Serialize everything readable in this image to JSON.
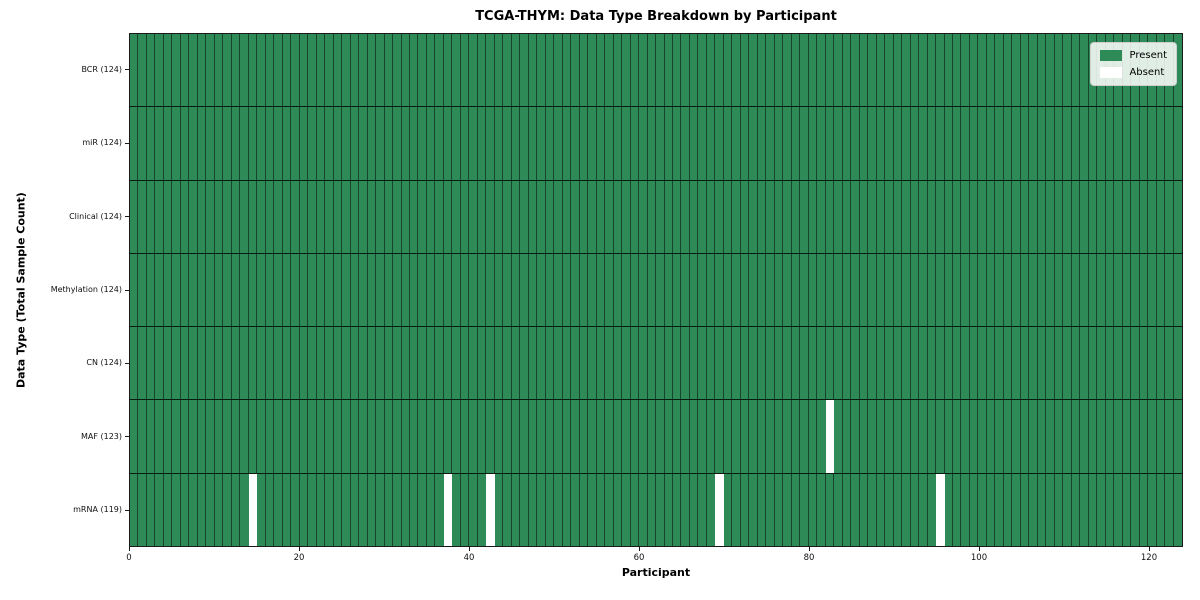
{
  "chart_data": {
    "type": "heatmap",
    "title": "TCGA-THYM: Data Type Breakdown by Participant",
    "xlabel": "Participant",
    "ylabel": "Data Type (Total Sample Count)",
    "x_range": [
      0,
      124
    ],
    "x_ticks": [
      0,
      20,
      40,
      60,
      80,
      100,
      120
    ],
    "n_participants": 124,
    "grid": "per-cell borders, dark row separators",
    "rows": [
      {
        "label": "BCR (124)",
        "data_type": "BCR",
        "total": 124,
        "absent_participants": []
      },
      {
        "label": "miR (124)",
        "data_type": "miR",
        "total": 124,
        "absent_participants": []
      },
      {
        "label": "Clinical (124)",
        "data_type": "Clinical",
        "total": 124,
        "absent_participants": []
      },
      {
        "label": "Methylation (124)",
        "data_type": "Methylation",
        "total": 124,
        "absent_participants": []
      },
      {
        "label": "CN (124)",
        "data_type": "CN",
        "total": 124,
        "absent_participants": []
      },
      {
        "label": "MAF (123)",
        "data_type": "MAF",
        "total": 123,
        "absent_participants": [
          82
        ]
      },
      {
        "label": "mRNA (119)",
        "data_type": "mRNA",
        "total": 119,
        "absent_participants": [
          14,
          37,
          42,
          69,
          95
        ]
      }
    ],
    "legend": {
      "position": "upper right",
      "entries": [
        {
          "label": "Present",
          "color": "#2e8b57"
        },
        {
          "label": "Absent",
          "color": "#ffffff"
        }
      ]
    },
    "colors": {
      "present": "#2e8b57",
      "absent": "#ffffff",
      "cell_border": "rgba(0,0,0,0.5)",
      "row_border": "rgba(0,0,0,0.8)",
      "spine": "#1a1a1a"
    }
  }
}
